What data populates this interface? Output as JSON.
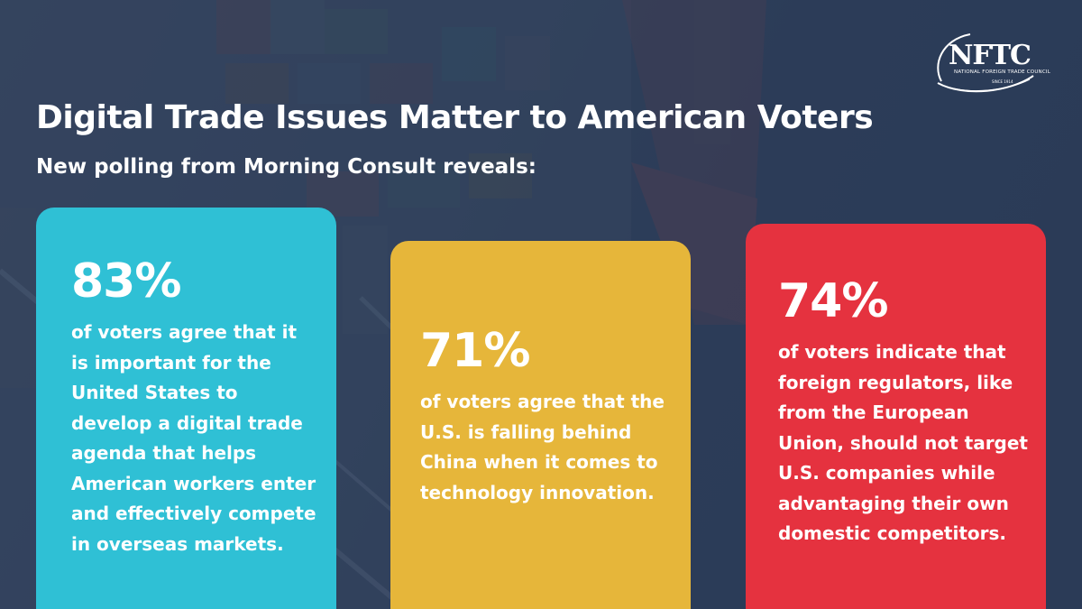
{
  "logo": {
    "name": "NFTC",
    "tagline": "NATIONAL FOREIGN TRADE COUNCIL",
    "since": "SINCE 1914"
  },
  "header": {
    "title": "Digital Trade Issues Matter to American Voters",
    "subtitle": "New polling from Morning Consult reveals:"
  },
  "cards": [
    {
      "percent": "83%",
      "text": "of voters agree that it is important for the United States to develop a digital trade agenda that helps American workers enter and effectively compete in overseas markets.",
      "color": "#2fc0d5"
    },
    {
      "percent": "71%",
      "text": "of voters agree that the U.S. is falling behind China when it comes to technology innovation.",
      "color": "#e6b63a"
    },
    {
      "percent": "74%",
      "text": "of voters indicate that foreign regulators, like from the European Union, should not target U.S. companies while advantaging their own domestic competitors.",
      "color": "#e5323f"
    }
  ]
}
